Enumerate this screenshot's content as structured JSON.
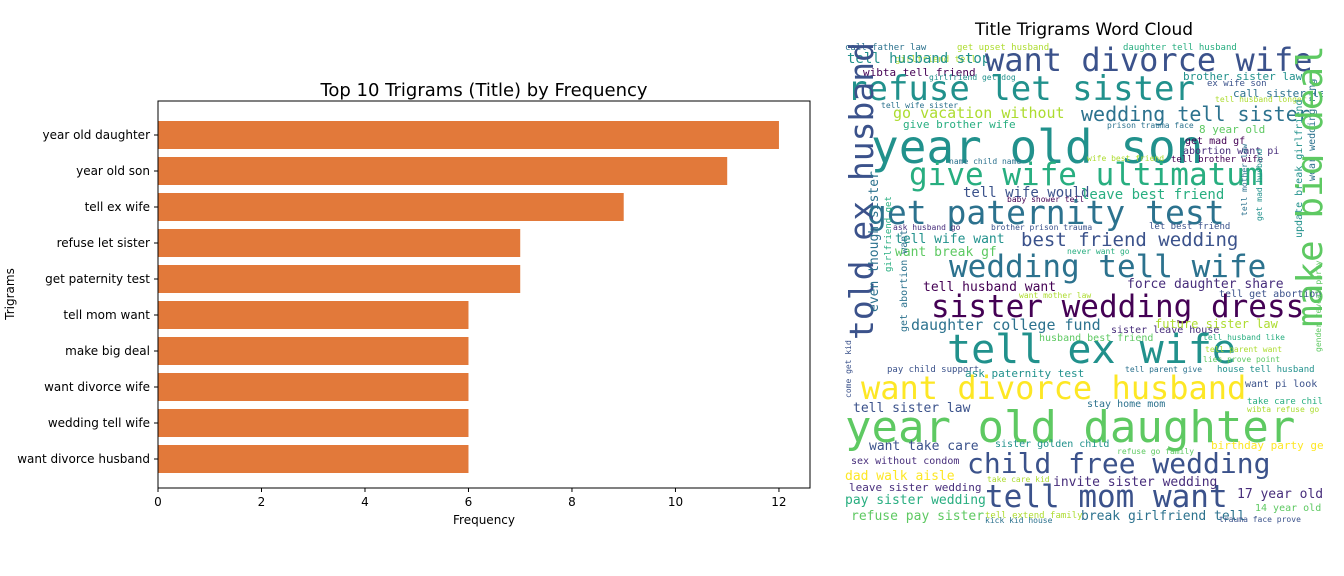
{
  "chart_data": [
    {
      "type": "bar",
      "orientation": "horizontal",
      "title": "Top 10 Trigrams (Title) by Frequency",
      "xlabel": "Frequency",
      "ylabel": "Trigrams",
      "categories": [
        "year old daughter",
        "year old son",
        "tell ex wife",
        "refuse let sister",
        "get paternity test",
        "tell mom want",
        "make big deal",
        "want divorce wife",
        "wedding tell wife",
        "want divorce husband"
      ],
      "values": [
        12,
        11,
        9,
        7,
        7,
        6,
        6,
        6,
        6,
        6
      ],
      "xlim": [
        0,
        12.6
      ],
      "xticks": [
        "0",
        "2",
        "4",
        "6",
        "8",
        "10",
        "12"
      ],
      "bar_color": "#e2793a",
      "grid": false,
      "legend": "none"
    },
    {
      "type": "wordcloud",
      "title": "Title Trigrams Word Cloud",
      "palette": "viridis",
      "words": [
        "call father law",
        "get upset husband",
        "daughter tell husband",
        "girlfriend tell",
        "tell husband stop",
        "want divorce wife",
        "wibta tell friend",
        "girlfriend get dog",
        "brother sister law",
        "ex wife son",
        "call sister law",
        "refuse let sister",
        "tell husband longer",
        "tell wife sister",
        "go vacation without",
        "wedding tell sister",
        "give brother wife",
        "prison trauma face",
        "8 year old",
        "year old son",
        "get mad gf",
        "abortion want pi",
        "wear wedding ring",
        "tell brother wife",
        "name child name",
        "wife best friend",
        "give wife ultimatum",
        "tell mother law",
        "get mad husband",
        "update break girlfriend",
        "tell wife would",
        "leave best friend",
        "baby shower tell",
        "get paternity test",
        "ask husband go",
        "brother prison trauma",
        "let best friend",
        "make big deal",
        "told ex husband",
        "tell wife want",
        "best friend wedding",
        "want break gf",
        "never want go",
        "even though sister",
        "girlfriend get",
        "wedding tell wife",
        "tell husband want",
        "force daughter share",
        "want mother law",
        "tell get abortion",
        "get abortion want",
        "sister wedding dress",
        "gender reveal party",
        "daughter college fund",
        "future sister law",
        "sister leave house",
        "husband best friend",
        "tell husband like",
        "tell ex wife",
        "tell parent want",
        "lies prove point",
        "pay child support",
        "tell parent give",
        "house tell husband",
        "come get kid",
        "ask paternity test",
        "want divorce husband",
        "want pi look",
        "take care child",
        "tell sister law",
        "stay home mom",
        "wibta refuse go",
        "year old daughter",
        "want take care",
        "sister golden child",
        "birthday party get",
        "refuse go family",
        "sex without condom",
        "child free wedding",
        "dad walk aisle",
        "take care kid",
        "leave sister wedding",
        "invite sister wedding",
        "tell mom want",
        "17 year old",
        "pay sister wedding",
        "14 year old",
        "refuse pay sister",
        "tell extend family",
        "kick kid house",
        "break girlfriend tell",
        "trauma face prove"
      ]
    }
  ]
}
